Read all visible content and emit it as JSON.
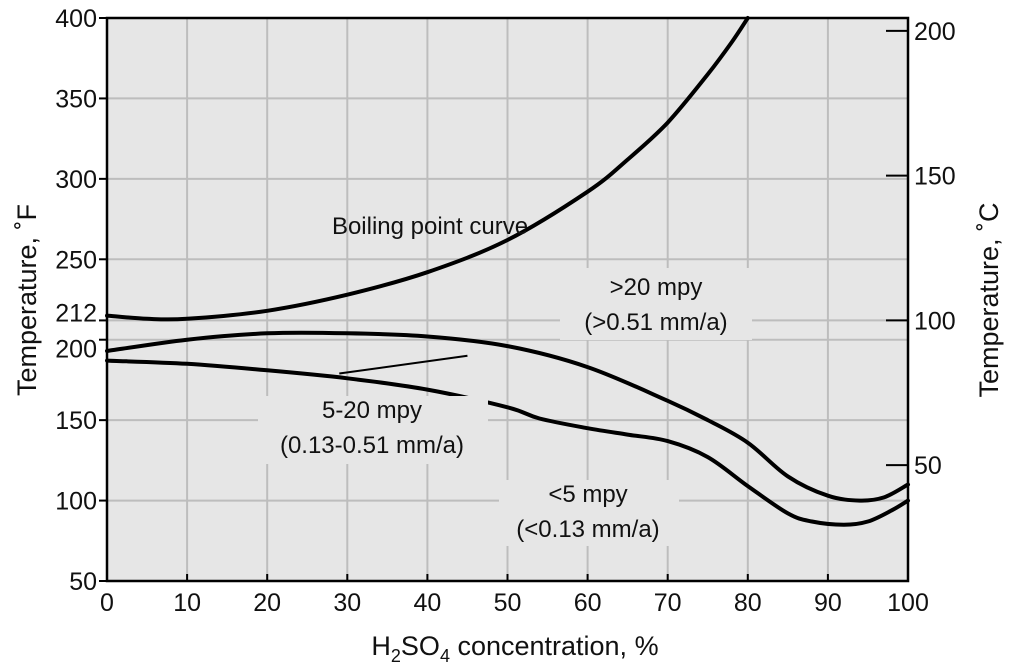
{
  "chart_data": {
    "type": "line",
    "title": "",
    "xlabel": {
      "base": "H",
      "sub1": "2",
      "mid": "SO",
      "sub2": "4",
      "rest": " concentration, %"
    },
    "ylabel_left": "Temperature, ˚F",
    "ylabel_right": "Temperature, ˚C",
    "xlim": [
      0,
      100
    ],
    "ylim": [
      50,
      400
    ],
    "y_right_lim_c": [
      10,
      204.44
    ],
    "grid": true,
    "x_ticks": [
      0,
      10,
      20,
      30,
      40,
      50,
      60,
      70,
      80,
      90,
      100
    ],
    "x_tick_labels": [
      "0",
      "10",
      "20",
      "30",
      "40",
      "50",
      "60",
      "70",
      "80",
      "90",
      "100"
    ],
    "y_left_ticks": [
      50,
      100,
      150,
      200,
      212,
      250,
      300,
      350,
      400
    ],
    "y_left_tick_labels": [
      "50",
      "100",
      "150",
      "200",
      "212",
      "250",
      "300",
      "350",
      "400"
    ],
    "y_right_ticks_c": [
      50,
      100,
      150,
      200
    ],
    "y_right_tick_labels": [
      "50",
      "100",
      "150",
      "200"
    ],
    "series": [
      {
        "x": [
          0,
          5,
          10,
          20,
          30,
          40,
          50,
          60,
          65,
          70,
          75,
          78,
          80
        ],
        "y": [
          215,
          213,
          213,
          218,
          228,
          242,
          262,
          292,
          312,
          335,
          365,
          385,
          400
        ]
      },
      {
        "x": [
          0,
          10,
          20,
          30,
          40,
          50,
          60,
          70,
          75,
          80,
          85,
          90,
          94,
          97,
          100
        ],
        "y": [
          193,
          200,
          204,
          204,
          202,
          196,
          183,
          162,
          150,
          136,
          115,
          103,
          100,
          102,
          110
        ]
      },
      {
        "x": [
          0,
          10,
          20,
          30,
          40,
          50,
          54,
          60,
          65,
          70,
          75,
          80,
          85,
          88,
          92,
          95,
          98,
          100
        ],
        "y": [
          187,
          185,
          181,
          176,
          169,
          158,
          151,
          145,
          141,
          137,
          127,
          109,
          92,
          87,
          85,
          87,
          94,
          100
        ]
      }
    ],
    "annotations": {
      "boiling": "Boiling point curve",
      "high_mpy": ">20 mpy",
      "high_mm": "(>0.51 mm/a)",
      "mid_mpy": "5-20 mpy",
      "mid_mm": "(0.13-0.51 mm/a)",
      "low_mpy": "<5 mpy",
      "low_mm": "(<0.13 mm/a)"
    },
    "leader_line": {
      "x": [
        29,
        45
      ],
      "y": [
        179,
        190
      ]
    }
  }
}
